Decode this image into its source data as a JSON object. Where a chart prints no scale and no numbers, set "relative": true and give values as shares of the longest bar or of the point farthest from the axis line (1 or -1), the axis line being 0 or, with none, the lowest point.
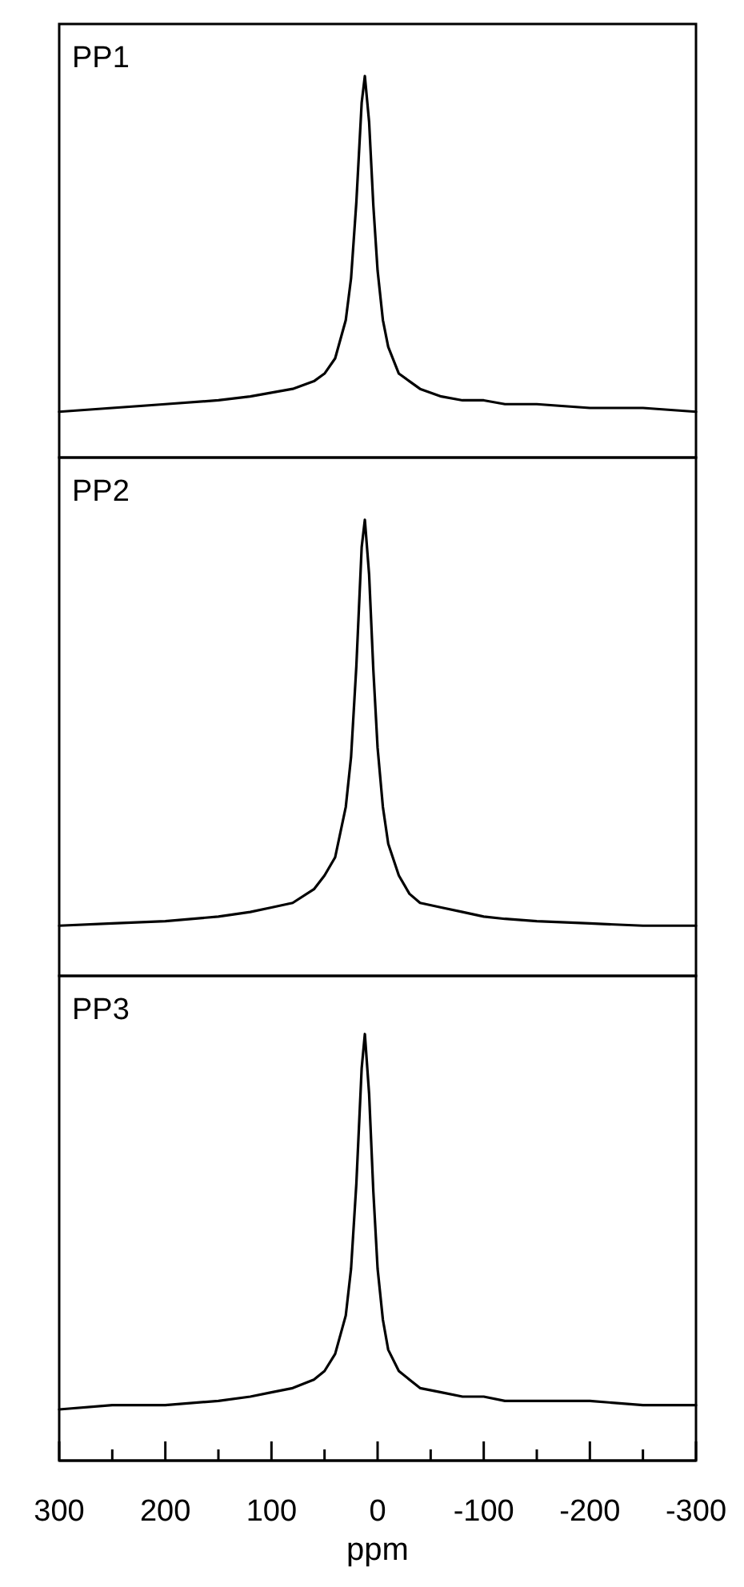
{
  "chart_data": [
    {
      "type": "line",
      "title": "PP1",
      "relative": true,
      "xlim": [
        300,
        -300
      ],
      "tick_labels": false,
      "x": [
        300,
        250,
        200,
        150,
        120,
        100,
        80,
        60,
        50,
        40,
        30,
        25,
        20,
        15,
        12,
        8,
        4,
        0,
        -5,
        -10,
        -20,
        -30,
        -40,
        -60,
        -80,
        -100,
        -120,
        -150,
        -200,
        -250,
        -300
      ],
      "series": [
        {
          "color": "#000000",
          "values": [
            0.12,
            0.13,
            0.14,
            0.15,
            0.16,
            0.17,
            0.18,
            0.2,
            0.22,
            0.26,
            0.36,
            0.47,
            0.67,
            0.93,
            1,
            0.88,
            0.66,
            0.49,
            0.36,
            0.29,
            0.22,
            0.2,
            0.18,
            0.16,
            0.15,
            0.15,
            0.14,
            0.14,
            0.13,
            0.13,
            0.12
          ]
        }
      ]
    },
    {
      "type": "line",
      "title": "PP2",
      "relative": true,
      "xlim": [
        300,
        -300
      ],
      "tick_labels": false,
      "x": [
        300,
        250,
        200,
        150,
        120,
        100,
        80,
        60,
        50,
        40,
        30,
        25,
        20,
        15,
        12,
        8,
        4,
        0,
        -5,
        -10,
        -20,
        -30,
        -40,
        -60,
        -80,
        -100,
        -120,
        -150,
        -200,
        -250,
        -300
      ],
      "series": [
        {
          "color": "#000000",
          "values": [
            0.11,
            0.115,
            0.12,
            0.13,
            0.14,
            0.15,
            0.16,
            0.19,
            0.22,
            0.26,
            0.37,
            0.48,
            0.68,
            0.94,
            1,
            0.88,
            0.67,
            0.5,
            0.37,
            0.29,
            0.22,
            0.18,
            0.16,
            0.15,
            0.14,
            0.13,
            0.125,
            0.12,
            0.115,
            0.11,
            0.11
          ]
        }
      ]
    },
    {
      "type": "line",
      "title": "PP3",
      "relative": true,
      "xlim": [
        300,
        -300
      ],
      "tick_labels": "x",
      "xlabel": "ppm",
      "x": [
        300,
        250,
        200,
        150,
        120,
        100,
        80,
        60,
        50,
        40,
        30,
        25,
        20,
        15,
        12,
        8,
        4,
        0,
        -5,
        -10,
        -20,
        -30,
        -40,
        -60,
        -80,
        -100,
        -120,
        -150,
        -200,
        -250,
        -300
      ],
      "xticks": [
        300,
        {
          "value": 250,
          "label": null
        },
        200,
        {
          "value": 150,
          "label": null
        },
        100,
        {
          "value": 50,
          "label": null
        },
        0,
        {
          "value": -50,
          "label": null
        },
        -100,
        {
          "value": -150,
          "label": null
        },
        -200,
        {
          "value": -250,
          "label": null
        },
        -300
      ],
      "series": [
        {
          "color": "#000000",
          "values": [
            0.12,
            0.13,
            0.13,
            0.14,
            0.15,
            0.16,
            0.17,
            0.19,
            0.21,
            0.25,
            0.34,
            0.45,
            0.65,
            0.92,
            1,
            0.86,
            0.63,
            0.45,
            0.33,
            0.26,
            0.21,
            0.19,
            0.17,
            0.16,
            0.15,
            0.15,
            0.14,
            0.14,
            0.14,
            0.13,
            0.13
          ]
        }
      ]
    }
  ]
}
